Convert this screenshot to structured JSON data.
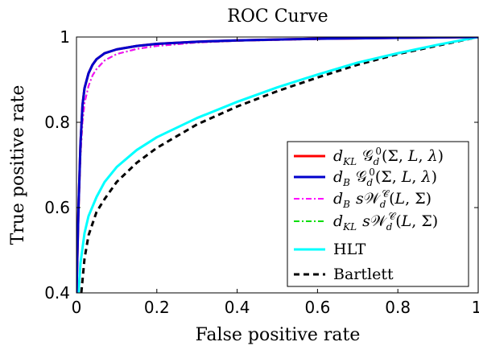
{
  "chart_data": {
    "type": "line",
    "title": "ROC Curve",
    "xlabel": "False positive rate",
    "ylabel": "True positive rate",
    "xlim": [
      0,
      1
    ],
    "ylim": [
      0.4,
      1
    ],
    "xticks": [
      0,
      0.2,
      0.4,
      0.6,
      0.8,
      1
    ],
    "xtick_labels": [
      "0",
      "0.2",
      "0.4",
      "0.6",
      "0.8",
      "1"
    ],
    "yticks": [
      0.4,
      0.6,
      0.8,
      1
    ],
    "ytick_labels": [
      "0.4",
      "0.6",
      "0.8",
      "1"
    ],
    "grid": false,
    "legend_position": "bottom-right",
    "series": [
      {
        "name": "d_{KL} 𝒢_d^0(Σ, L, λ)",
        "color": "#ff0000",
        "dash": "solid",
        "x": [
          0.0,
          0.005,
          0.01,
          0.015,
          0.02,
          0.03,
          0.04,
          0.05,
          0.07,
          0.1,
          0.15,
          0.2,
          0.3,
          0.4,
          0.5,
          0.6,
          0.7,
          0.8,
          0.9,
          1.0
        ],
        "y": [
          0.4,
          0.6,
          0.75,
          0.84,
          0.88,
          0.915,
          0.935,
          0.948,
          0.962,
          0.971,
          0.979,
          0.984,
          0.989,
          0.992,
          0.994,
          0.996,
          0.997,
          0.998,
          0.999,
          1.0
        ]
      },
      {
        "name": "d_B 𝒢_d^0(Σ, L, λ)",
        "color": "#0000cc",
        "dash": "solid",
        "x": [
          0.0,
          0.005,
          0.01,
          0.015,
          0.02,
          0.03,
          0.04,
          0.05,
          0.07,
          0.1,
          0.15,
          0.2,
          0.3,
          0.4,
          0.5,
          0.6,
          0.7,
          0.8,
          0.9,
          1.0
        ],
        "y": [
          0.4,
          0.6,
          0.75,
          0.84,
          0.88,
          0.915,
          0.935,
          0.948,
          0.962,
          0.971,
          0.979,
          0.984,
          0.989,
          0.992,
          0.994,
          0.996,
          0.997,
          0.998,
          0.999,
          1.0
        ]
      },
      {
        "name": "d_B s𝒲_d^𝒞(L, Σ)",
        "color": "#ff00ff",
        "dash": "dashdot",
        "x": [
          0.0,
          0.005,
          0.01,
          0.015,
          0.02,
          0.03,
          0.04,
          0.05,
          0.07,
          0.1,
          0.15,
          0.2,
          0.3,
          0.4,
          0.5,
          0.6,
          0.7,
          0.8,
          0.9,
          1.0
        ],
        "y": [
          0.4,
          0.58,
          0.72,
          0.8,
          0.845,
          0.885,
          0.91,
          0.925,
          0.945,
          0.96,
          0.972,
          0.979,
          0.987,
          0.991,
          0.993,
          0.995,
          0.997,
          0.998,
          0.999,
          1.0
        ]
      },
      {
        "name": "d_{KL} s𝒲_d^𝒞(L, Σ)",
        "color": "#00dd00",
        "dash": "dashdot",
        "x": [
          0.0,
          0.005,
          0.01,
          0.015,
          0.02,
          0.03,
          0.04,
          0.05,
          0.07,
          0.1,
          0.15,
          0.2,
          0.3,
          0.4,
          0.5,
          0.6,
          0.7,
          0.8,
          0.9,
          1.0
        ],
        "y": [
          0.4,
          0.58,
          0.72,
          0.8,
          0.845,
          0.885,
          0.91,
          0.925,
          0.945,
          0.96,
          0.972,
          0.979,
          0.987,
          0.991,
          0.993,
          0.995,
          0.997,
          0.998,
          0.999,
          1.0
        ]
      },
      {
        "name": "HLT",
        "color": "#00ffff",
        "dash": "solid",
        "x": [
          0.005,
          0.01,
          0.02,
          0.03,
          0.05,
          0.07,
          0.1,
          0.15,
          0.2,
          0.3,
          0.4,
          0.5,
          0.6,
          0.7,
          0.8,
          0.9,
          1.0
        ],
        "y": [
          0.4,
          0.47,
          0.54,
          0.58,
          0.625,
          0.66,
          0.695,
          0.735,
          0.765,
          0.81,
          0.848,
          0.882,
          0.912,
          0.94,
          0.962,
          0.982,
          1.0
        ]
      },
      {
        "name": "Bartlett",
        "color": "#000000",
        "dash": "dashed",
        "x": [
          0.012,
          0.02,
          0.03,
          0.05,
          0.07,
          0.1,
          0.15,
          0.2,
          0.3,
          0.4,
          0.5,
          0.6,
          0.7,
          0.8,
          0.9,
          1.0
        ],
        "y": [
          0.4,
          0.48,
          0.535,
          0.59,
          0.62,
          0.66,
          0.705,
          0.74,
          0.795,
          0.837,
          0.873,
          0.905,
          0.935,
          0.96,
          0.98,
          1.0
        ]
      }
    ]
  }
}
